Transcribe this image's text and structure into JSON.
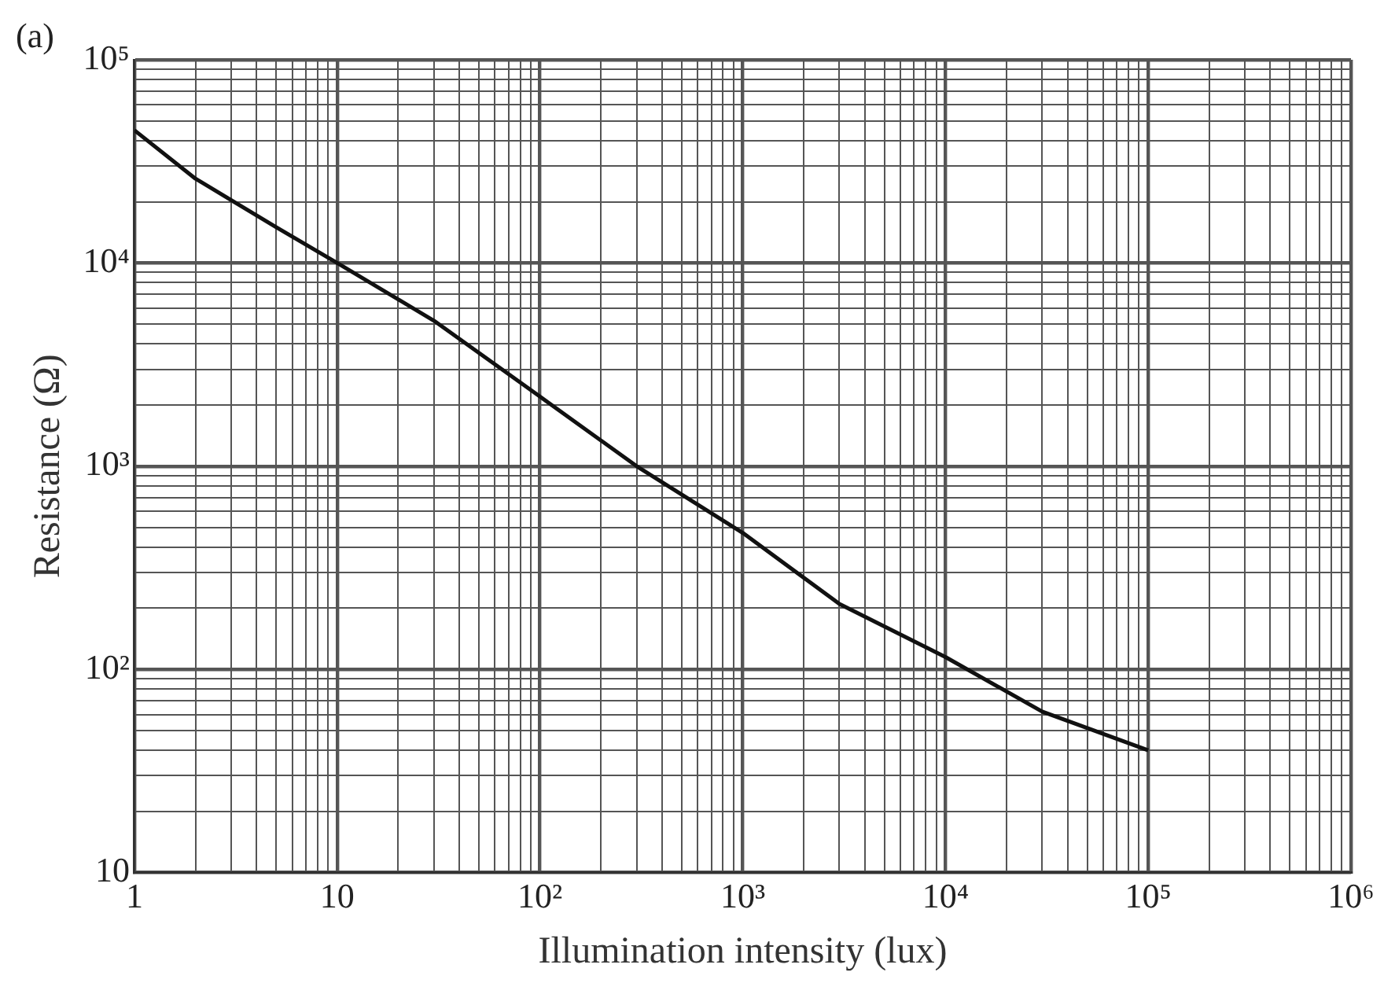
{
  "chart_data": {
    "type": "line",
    "xlabel": "Illumination intensity (lux)",
    "ylabel": "Resistance (Ω)",
    "annotations": [
      "(a)"
    ],
    "x": [
      1,
      2,
      5,
      10,
      30,
      100,
      300,
      1000,
      3000,
      10000,
      30000,
      100000
    ],
    "series": [
      {
        "color": "#111111",
        "values": [
          45000,
          26000,
          15000,
          10000,
          5200,
          2200,
          1000,
          470,
          210,
          115,
          62,
          40
        ]
      }
    ],
    "log": "xy",
    "grid": true,
    "marker": "none",
    "line_style": "solid",
    "legend": false,
    "xlim": [
      1,
      1000000
    ],
    "ylim": [
      10,
      100000
    ],
    "xticks": [
      {
        "value": 1,
        "label": "1"
      },
      {
        "value": 2,
        "label": null
      },
      {
        "value": 3,
        "label": null
      },
      {
        "value": 4,
        "label": null
      },
      {
        "value": 5,
        "label": null
      },
      {
        "value": 6,
        "label": null
      },
      {
        "value": 7,
        "label": null
      },
      {
        "value": 8,
        "label": null
      },
      {
        "value": 9,
        "label": null
      },
      {
        "value": 10,
        "label": "10"
      },
      {
        "value": 20,
        "label": null
      },
      {
        "value": 30,
        "label": null
      },
      {
        "value": 40,
        "label": null
      },
      {
        "value": 50,
        "label": null
      },
      {
        "value": 60,
        "label": null
      },
      {
        "value": 70,
        "label": null
      },
      {
        "value": 80,
        "label": null
      },
      {
        "value": 90,
        "label": null
      },
      {
        "value": 100,
        "label": "10²"
      },
      {
        "value": 200,
        "label": null
      },
      {
        "value": 300,
        "label": null
      },
      {
        "value": 400,
        "label": null
      },
      {
        "value": 500,
        "label": null
      },
      {
        "value": 600,
        "label": null
      },
      {
        "value": 700,
        "label": null
      },
      {
        "value": 800,
        "label": null
      },
      {
        "value": 900,
        "label": null
      },
      {
        "value": 1000,
        "label": "10³"
      },
      {
        "value": 2000,
        "label": null
      },
      {
        "value": 3000,
        "label": null
      },
      {
        "value": 4000,
        "label": null
      },
      {
        "value": 5000,
        "label": null
      },
      {
        "value": 6000,
        "label": null
      },
      {
        "value": 7000,
        "label": null
      },
      {
        "value": 8000,
        "label": null
      },
      {
        "value": 9000,
        "label": null
      },
      {
        "value": 10000,
        "label": "10⁴"
      },
      {
        "value": 20000,
        "label": null
      },
      {
        "value": 30000,
        "label": null
      },
      {
        "value": 40000,
        "label": null
      },
      {
        "value": 50000,
        "label": null
      },
      {
        "value": 60000,
        "label": null
      },
      {
        "value": 70000,
        "label": null
      },
      {
        "value": 80000,
        "label": null
      },
      {
        "value": 90000,
        "label": null
      },
      {
        "value": 100000,
        "label": "10⁵"
      },
      {
        "value": 200000,
        "label": null
      },
      {
        "value": 300000,
        "label": null
      },
      {
        "value": 400000,
        "label": null
      },
      {
        "value": 500000,
        "label": null
      },
      {
        "value": 600000,
        "label": null
      },
      {
        "value": 700000,
        "label": null
      },
      {
        "value": 800000,
        "label": null
      },
      {
        "value": 900000,
        "label": null
      },
      {
        "value": 1000000,
        "label": "10⁶"
      }
    ],
    "yticks": [
      {
        "value": 10,
        "label": "10"
      },
      {
        "value": 20,
        "label": null
      },
      {
        "value": 30,
        "label": null
      },
      {
        "value": 40,
        "label": null
      },
      {
        "value": 50,
        "label": null
      },
      {
        "value": 60,
        "label": null
      },
      {
        "value": 70,
        "label": null
      },
      {
        "value": 80,
        "label": null
      },
      {
        "value": 90,
        "label": null
      },
      {
        "value": 100,
        "label": "10²"
      },
      {
        "value": 200,
        "label": null
      },
      {
        "value": 300,
        "label": null
      },
      {
        "value": 400,
        "label": null
      },
      {
        "value": 500,
        "label": null
      },
      {
        "value": 600,
        "label": null
      },
      {
        "value": 700,
        "label": null
      },
      {
        "value": 800,
        "label": null
      },
      {
        "value": 900,
        "label": null
      },
      {
        "value": 1000,
        "label": "10³"
      },
      {
        "value": 2000,
        "label": null
      },
      {
        "value": 3000,
        "label": null
      },
      {
        "value": 4000,
        "label": null
      },
      {
        "value": 5000,
        "label": null
      },
      {
        "value": 6000,
        "label": null
      },
      {
        "value": 7000,
        "label": null
      },
      {
        "value": 8000,
        "label": null
      },
      {
        "value": 9000,
        "label": null
      },
      {
        "value": 10000,
        "label": "10⁴"
      },
      {
        "value": 20000,
        "label": null
      },
      {
        "value": 30000,
        "label": null
      },
      {
        "value": 40000,
        "label": null
      },
      {
        "value": 50000,
        "label": null
      },
      {
        "value": 60000,
        "label": null
      },
      {
        "value": 70000,
        "label": null
      },
      {
        "value": 80000,
        "label": null
      },
      {
        "value": 90000,
        "label": null
      },
      {
        "value": 100000,
        "label": "10⁵"
      }
    ]
  }
}
